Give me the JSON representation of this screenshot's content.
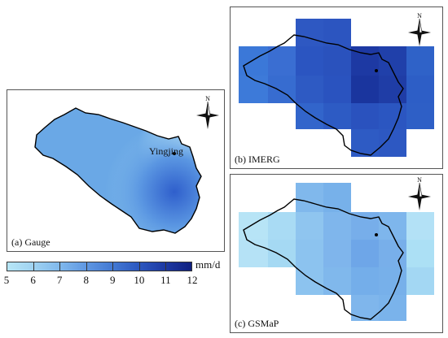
{
  "panels": {
    "a": {
      "label": "(a) Gauge"
    },
    "b": {
      "label": "(b) IMERG"
    },
    "c": {
      "label": "(c) GSMaP"
    }
  },
  "station": {
    "name": "Yingjing"
  },
  "north_arrow": {
    "letter": "N"
  },
  "legend": {
    "unit": "mm/d",
    "ticks": [
      "5",
      "6",
      "7",
      "8",
      "9",
      "10",
      "11",
      "12"
    ],
    "min": 5,
    "max": 12,
    "colors": [
      "#b7e6f6",
      "#9fd2f1",
      "#80b8ec",
      "#5f97e2",
      "#4379d3",
      "#2c58c0",
      "#1d39a3",
      "#102080"
    ]
  },
  "colors": {
    "gauge_light": "#a9d6f2",
    "gauge_mid": "#6aa8e6",
    "gauge_dark": "#3a6fd0",
    "boundary": "#000000"
  }
}
